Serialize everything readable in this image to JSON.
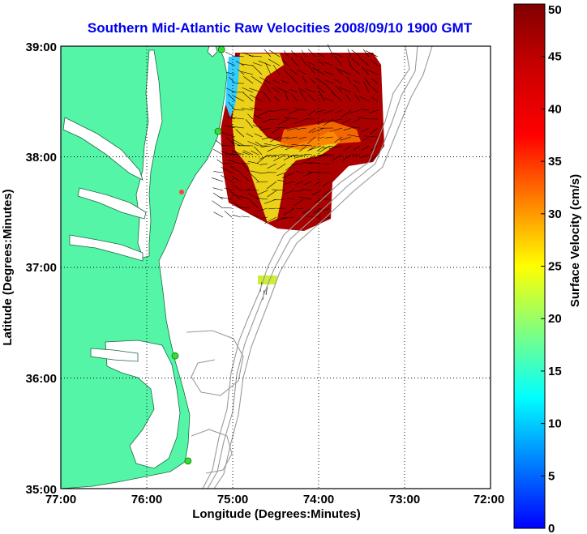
{
  "title": "Southern Mid-Atlantic Raw Velocities 2008/09/10 1900 GMT",
  "x_axis": {
    "label": "Longitude (Degrees:Minutes)",
    "ticks": [
      "77:00",
      "76:00",
      "75:00",
      "74:00",
      "73:00",
      "72:00"
    ]
  },
  "y_axis": {
    "label": "Latitude (Degrees:Minutes)",
    "ticks": [
      "39:00",
      "38:00",
      "37:00",
      "36:00",
      "35:00"
    ]
  },
  "colorbar": {
    "label": "Surface Velocity (cm/s)",
    "ticks": [
      "50",
      "45",
      "40",
      "35",
      "30",
      "25",
      "20",
      "15",
      "10",
      "5",
      "0"
    ],
    "range": [
      0,
      50
    ]
  },
  "colors": {
    "title": "#0000ee",
    "land": "#55f5a8",
    "water": "#ffffff",
    "bathymetry": "#999999",
    "gridlines": "#000000",
    "station_marker": "#33dd33"
  },
  "map": {
    "lon_range": [
      -77,
      -72
    ],
    "lat_range": [
      35,
      39
    ],
    "grid": "dotted",
    "stations": [
      {
        "lon": -75.13,
        "lat": 38.97
      },
      {
        "lon": -75.17,
        "lat": 38.23
      },
      {
        "lon": -75.67,
        "lat": 36.2
      },
      {
        "lon": -75.52,
        "lat": 35.25
      }
    ]
  }
}
